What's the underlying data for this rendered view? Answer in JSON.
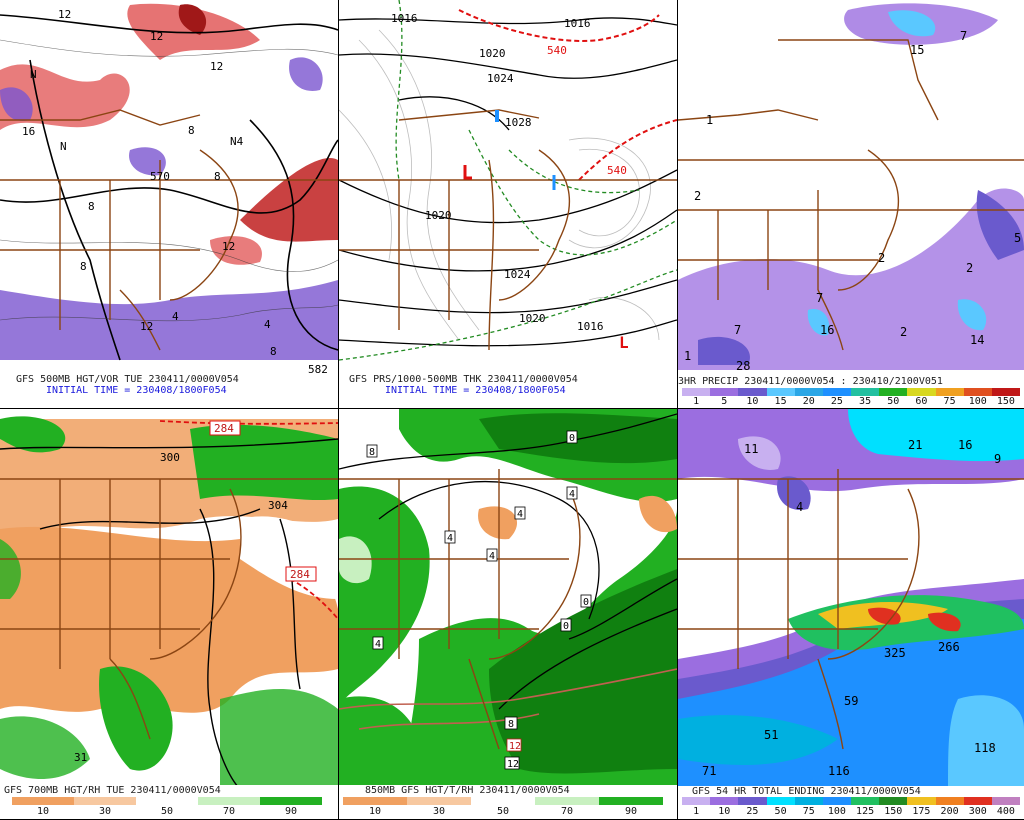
{
  "panels": {
    "p1": {
      "caption1": "GFS 500MB HGT/VOR TUE 230411/0000V054",
      "caption2": "INITIAL TIME = 230408/1800F054",
      "labels": [
        "12",
        "16",
        "N",
        "8",
        "8",
        "8",
        "12",
        "N",
        "4",
        "8",
        "12",
        "12",
        "4",
        "8",
        "582",
        "N4",
        "570",
        "12"
      ]
    },
    "p2": {
      "caption1": "GFS PRS/1000-500MB THK 230411/0000V054",
      "caption2": "INITIAL TIME = 230408/1800F054",
      "labels": [
        "1016",
        "1016",
        "540",
        "1020",
        "1024",
        "1028",
        "540",
        "1020",
        "1024",
        "1020",
        "1016",
        "L"
      ]
    },
    "p3": {
      "caption1": "3HR PRECIP 230411/0000V054 : 230410/2100V051",
      "scale_labels": [
        "1",
        "5",
        "10",
        "15",
        "20",
        "25",
        "35",
        "50",
        "60",
        "75",
        "100",
        "150"
      ],
      "values": [
        "15",
        "7",
        "1",
        "2",
        "2",
        "2",
        "5",
        "7",
        "7",
        "16",
        "2",
        "14",
        "28",
        "1"
      ]
    },
    "p4": {
      "caption1": "GFS 700MB HGT/RH TUE 230411/0000V054",
      "scale_labels": [
        "10",
        "30",
        "50",
        "70",
        "90"
      ],
      "labels": [
        "284",
        "300",
        "304",
        "284",
        "31"
      ]
    },
    "p5": {
      "caption1": "850MB GFS HGT/T/RH 230411/0000V054",
      "scale_labels": [
        "10",
        "30",
        "50",
        "70",
        "90"
      ],
      "labels": [
        "8",
        "0",
        "4",
        "4",
        "4",
        "4",
        "0",
        "4",
        "0",
        "8",
        "12",
        "12"
      ]
    },
    "p6": {
      "caption1": "GFS 54 HR TOTAL ENDING 230411/0000V054",
      "scale_labels": [
        "1",
        "10",
        "25",
        "50",
        "75",
        "100",
        "125",
        "150",
        "175",
        "200",
        "300",
        "400"
      ],
      "values": [
        "11",
        "21",
        "16",
        "9",
        "4",
        "325",
        "266",
        "59",
        "51",
        "71",
        "116",
        "118"
      ]
    }
  },
  "colors": {
    "state_lines": "#8b4513",
    "vorticity_pos": "#e05050",
    "vorticity_neg": "#7b55d0",
    "rh_dry": "#f0a060",
    "rh_moist": "#22b022",
    "precip_scale": [
      "#c8b0f0",
      "#9b6ee0",
      "#6a5acd",
      "#5ac8ff",
      "#2aa6e6",
      "#1e90ff",
      "#22c0a0",
      "#22b022",
      "#d8d820",
      "#f0a020",
      "#e05020",
      "#c01818"
    ],
    "total_scale": [
      "#c8b0f0",
      "#9b6ee0",
      "#6a5acd",
      "#00e0ff",
      "#00b0e0",
      "#1e90ff",
      "#20c060",
      "#228b22",
      "#f0c020",
      "#f08020",
      "#e03020",
      "#c080c0"
    ],
    "rh_scale": [
      "#f0a060",
      "#f7c8a0",
      "#ffffff",
      "#c8f0c0",
      "#22b022"
    ]
  }
}
